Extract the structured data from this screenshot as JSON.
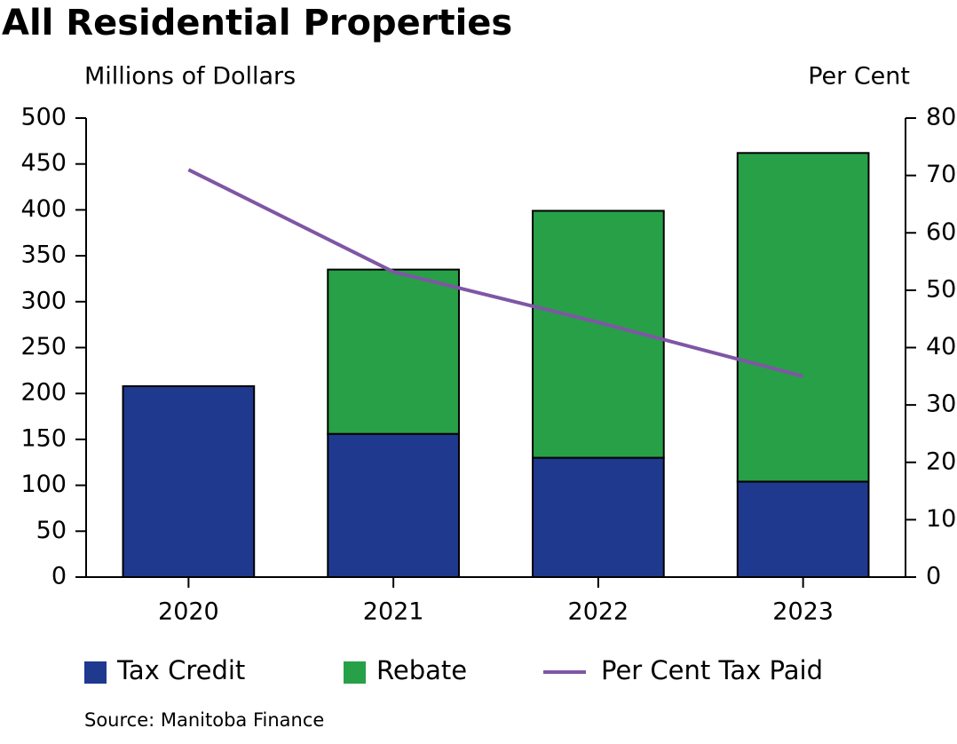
{
  "chart_data": {
    "type": "bar",
    "stacked": true,
    "title": "All Residential Properties",
    "y_label": "Millions of Dollars",
    "y2_label": "Per Cent",
    "source": "Source: Manitoba Finance",
    "categories": [
      "2020",
      "2021",
      "2022",
      "2023"
    ],
    "series": [
      {
        "name": "Tax Credit",
        "type": "bar",
        "color": "#1f398f",
        "values": [
          208,
          156,
          130,
          104
        ]
      },
      {
        "name": "Rebate",
        "type": "bar",
        "color": "#27a047",
        "values": [
          null,
          179,
          269,
          358
        ]
      },
      {
        "name": "Per Cent Tax Paid",
        "type": "line",
        "axis": "y2",
        "color": "#7f56a5",
        "values": [
          71,
          53.2,
          44.4,
          35
        ]
      }
    ],
    "ylim": [
      0,
      500
    ],
    "yticks": [
      0,
      50,
      100,
      150,
      200,
      250,
      300,
      350,
      400,
      450,
      500
    ],
    "y2lim": [
      0,
      80
    ],
    "y2ticks": [
      0,
      10,
      20,
      30,
      40,
      50,
      60,
      70,
      80
    ],
    "grid": false
  }
}
